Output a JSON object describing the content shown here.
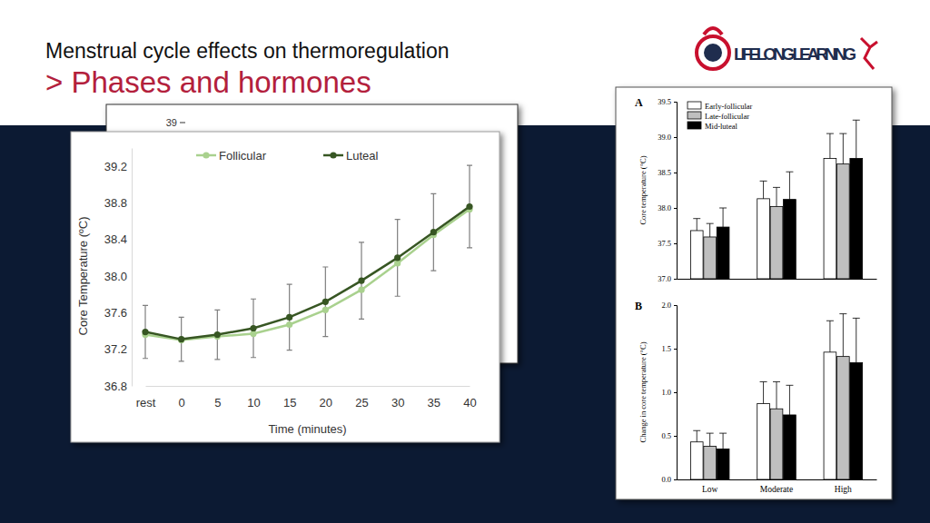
{
  "slide": {
    "title": "Menstrual cycle effects on thermoregulation",
    "subtitle": "> Phases and hormones",
    "logo_text": "LIFELONG LEARNING",
    "back_chart": {
      "yticks": [
        39
      ]
    }
  },
  "chart_data": [
    {
      "type": "line",
      "categories": [
        "rest",
        "0",
        "5",
        "10",
        "15",
        "20",
        "25",
        "30",
        "35",
        "40"
      ],
      "x_label": "Time (minutes)",
      "y_label": "Core Temperature (ºC)",
      "ylim": [
        36.8,
        39.4
      ],
      "yticks": [
        36.8,
        37.2,
        37.6,
        {
          "value": 38,
          "label": "38.0"
        },
        38.4,
        38.8,
        39.2
      ],
      "grid": false,
      "legend": "top",
      "series": [
        {
          "name": "Follicular",
          "color": "#a9d18e",
          "marker": "circle",
          "values": [
            37.36,
            37.3,
            37.34,
            37.37,
            37.47,
            37.63,
            37.85,
            38.14,
            38.45,
            38.73
          ]
        },
        {
          "name": "Luteal",
          "color": "#375623",
          "marker": "circle",
          "values": [
            37.39,
            37.31,
            37.36,
            37.43,
            37.55,
            37.72,
            37.95,
            38.2,
            38.48,
            38.76
          ],
          "error": [
            0.29,
            0.24,
            0.27,
            0.32,
            0.36,
            0.38,
            0.42,
            0.42,
            0.42,
            0.45
          ]
        }
      ]
    },
    {
      "type": "bar",
      "title": "A",
      "categories": [
        "Low",
        "Moderate",
        "High"
      ],
      "y_label": "Core temperature (°C)",
      "ylim": [
        37,
        39.5
      ],
      "yticks": [
        {
          "value": 37,
          "label": "37.0"
        },
        37.5,
        {
          "value": 38,
          "label": "38.0"
        },
        38.5,
        {
          "value": 39,
          "label": "39.0"
        },
        39.5
      ],
      "tick_labels": "y",
      "grid": false,
      "legend": "top-left",
      "series": [
        {
          "name": "Early-follicular",
          "color": "#ffffff",
          "values": [
            37.68,
            38.13,
            38.7
          ],
          "error": [
            0.17,
            0.25,
            0.35
          ]
        },
        {
          "name": "Late-follicular",
          "color": "#bfbfbf",
          "values": [
            37.59,
            38.02,
            38.62
          ],
          "error": [
            0.19,
            0.27,
            0.43
          ]
        },
        {
          "name": "Mid-luteal",
          "color": "#000000",
          "values": [
            37.73,
            38.12,
            38.7
          ],
          "error": [
            0.27,
            0.39,
            0.54
          ]
        }
      ]
    },
    {
      "type": "bar",
      "title": "B",
      "categories": [
        "Low",
        "Moderate",
        "High"
      ],
      "y_label": "Change in core temperature (°C)",
      "ylim": [
        0,
        2
      ],
      "yticks": [
        {
          "value": 0,
          "label": "0.0"
        },
        0.5,
        {
          "value": 1,
          "label": "1.0"
        },
        1.5,
        {
          "value": 2,
          "label": "2.0"
        }
      ],
      "grid": false,
      "legend": false,
      "series": [
        {
          "name": "Early-follicular",
          "color": "#ffffff",
          "values": [
            0.43,
            0.87,
            1.46
          ],
          "error": [
            0.13,
            0.25,
            0.36
          ]
        },
        {
          "name": "Late-follicular",
          "color": "#bfbfbf",
          "values": [
            0.38,
            0.81,
            1.41
          ],
          "error": [
            0.15,
            0.31,
            0.49
          ]
        },
        {
          "name": "Mid-luteal",
          "color": "#000000",
          "values": [
            0.35,
            0.74,
            1.34
          ],
          "error": [
            0.18,
            0.34,
            0.51
          ]
        }
      ]
    }
  ]
}
